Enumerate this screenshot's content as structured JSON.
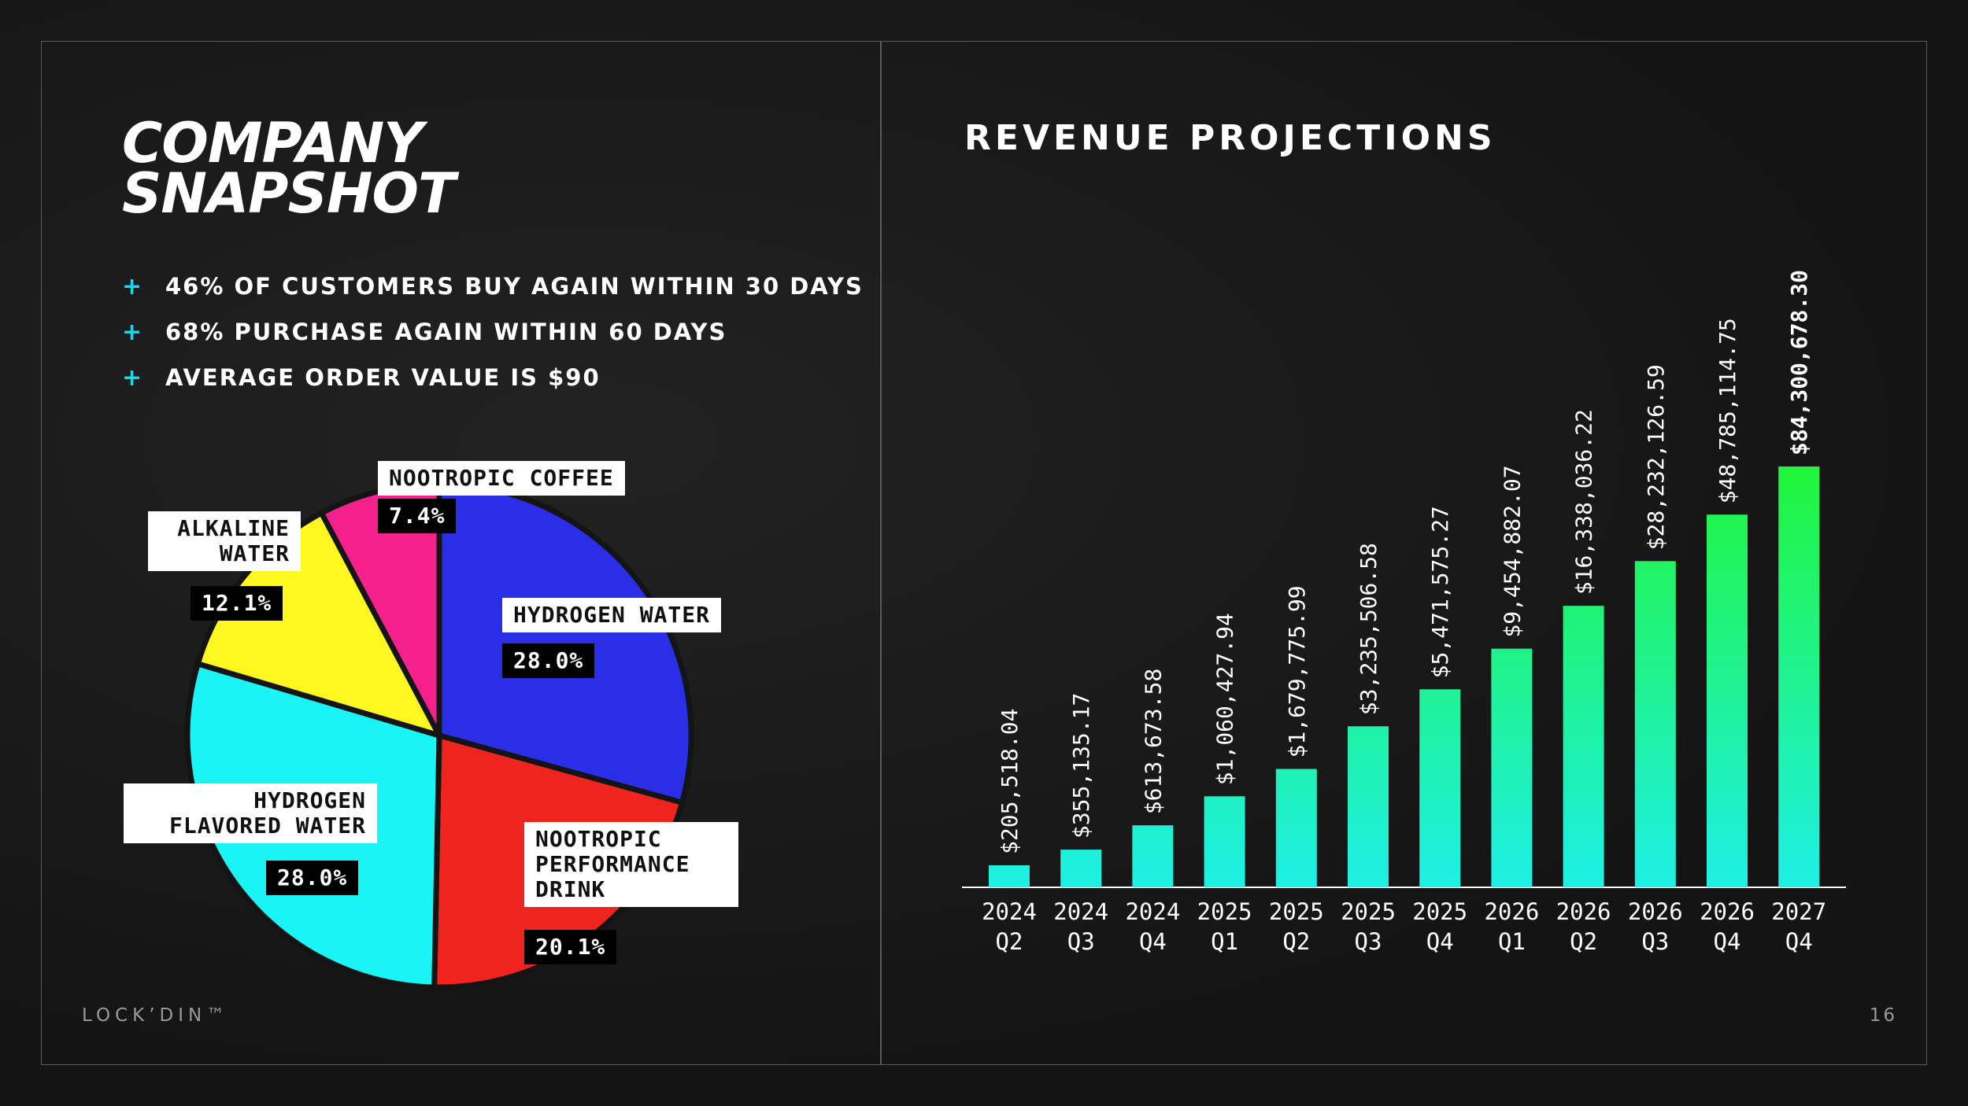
{
  "left": {
    "title_lines": [
      "COMPANY",
      "SNAPSHOT"
    ],
    "bullet_symbol": "+",
    "bullets": [
      "46% OF CUSTOMERS BUY AGAIN WITHIN 30 DAYS",
      "68% PURCHASE AGAIN WITHIN 60 DAYS",
      "AVERAGE ORDER VALUE IS $90"
    ]
  },
  "right": {
    "title": "REVENUE PROJECTIONS"
  },
  "footer": {
    "brand": "LOCK’DIN™",
    "page": "16"
  },
  "colors": {
    "accent": "#1ad6ea",
    "pie": [
      "#2a2ee6",
      "#f0241e",
      "#19f5f5",
      "#fff820",
      "#f5208c"
    ],
    "bar_bottom": "#1ef0e6",
    "bar_top": "#21f53a"
  },
  "chart_data": [
    {
      "type": "pie",
      "title": "",
      "slices": [
        {
          "name": "HYDROGEN WATER",
          "value": 28.0,
          "label": "28.0%"
        },
        {
          "name": "NOOTROPIC PERFORMANCE DRINK",
          "value": 20.1,
          "label": "20.1%"
        },
        {
          "name": "HYDROGEN FLAVORED WATER",
          "value": 28.0,
          "label": "28.0%"
        },
        {
          "name": "ALKALINE WATER",
          "value": 12.1,
          "label": "12.1%"
        },
        {
          "name": "NOOTROPIC COFFEE",
          "value": 7.4,
          "label": "7.4%"
        }
      ],
      "start_angle_deg": 0,
      "direction": "clockwise"
    },
    {
      "type": "bar",
      "title": "REVENUE PROJECTIONS",
      "categories": [
        [
          "2024",
          "Q2"
        ],
        [
          "2024",
          "Q3"
        ],
        [
          "2024",
          "Q4"
        ],
        [
          "2025",
          "Q1"
        ],
        [
          "2025",
          "Q2"
        ],
        [
          "2025",
          "Q3"
        ],
        [
          "2025",
          "Q4"
        ],
        [
          "2026",
          "Q1"
        ],
        [
          "2026",
          "Q2"
        ],
        [
          "2026",
          "Q3"
        ],
        [
          "2026",
          "Q4"
        ],
        [
          "2027",
          "Q4"
        ]
      ],
      "values": [
        205518.04,
        355135.17,
        613673.58,
        1060427.94,
        1679775.99,
        3235506.58,
        5471575.27,
        9454882.07,
        16338036.22,
        28232126.59,
        48785114.75,
        84300678.3
      ],
      "value_labels": [
        "$205,518.04",
        "$355,135.17",
        "$613,673.58",
        "$1,060,427.94",
        "$1,679,775.99",
        "$3,235,506.58",
        "$5,471,575.27",
        "$9,454,882.07",
        "$16,338,036.22",
        "$28,232,126.59",
        "$48,785,114.75",
        "$84,300,678.30"
      ],
      "bar_step_growth": 1.0,
      "note": "bars grow in roughly equal steps (log-like visual scale)",
      "xlabel": "",
      "ylabel": ""
    }
  ]
}
